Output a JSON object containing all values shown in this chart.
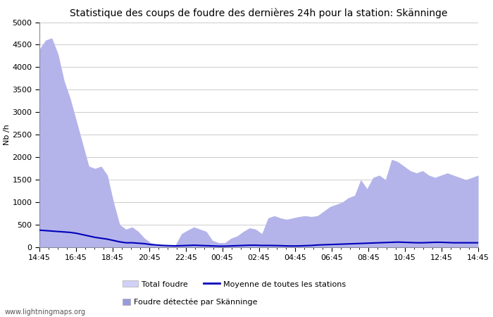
{
  "title": "Statistique des coups de foudre des dernières 24h pour la station: Skänninge",
  "ylabel": "Nb /h",
  "ylim": [
    0,
    5000
  ],
  "yticks": [
    0,
    500,
    1000,
    1500,
    2000,
    2500,
    3000,
    3500,
    4000,
    4500,
    5000
  ],
  "xtick_labels": [
    "14:45",
    "16:45",
    "18:45",
    "20:45",
    "22:45",
    "00:45",
    "02:45",
    "04:45",
    "06:45",
    "08:45",
    "10:45",
    "12:45",
    "14:45"
  ],
  "watermark": "www.lightningmaps.org",
  "total_foudre_color": "#d0d0f8",
  "detected_color": "#9999dd",
  "moyenne_color": "#0000bb",
  "background_color": "#ffffff",
  "grid_color": "#cccccc",
  "title_fontsize": 10,
  "axis_fontsize": 8,
  "tick_fontsize": 8,
  "legend_fontsize": 8,
  "total_foudre": [
    4400,
    4600,
    4650,
    4300,
    3700,
    3300,
    2800,
    2300,
    1800,
    1750,
    1800,
    1600,
    1000,
    500,
    400,
    450,
    350,
    200,
    100,
    60,
    50,
    40,
    50,
    300,
    380,
    450,
    400,
    350,
    150,
    100,
    100,
    200,
    250,
    350,
    430,
    400,
    300,
    650,
    700,
    650,
    620,
    650,
    680,
    700,
    680,
    700,
    800,
    900,
    950,
    1000,
    1100,
    1150,
    1500,
    1300,
    1550,
    1600,
    1500,
    1950,
    1900,
    1800,
    1700,
    1650,
    1700,
    1600,
    1550,
    1600,
    1650,
    1600,
    1550,
    1500,
    1550,
    1600
  ],
  "detected_foudre": [
    4400,
    4600,
    4650,
    4300,
    3700,
    3300,
    2800,
    2300,
    1800,
    1750,
    1800,
    1600,
    1000,
    500,
    400,
    450,
    350,
    200,
    100,
    60,
    50,
    40,
    50,
    300,
    380,
    450,
    400,
    350,
    150,
    100,
    100,
    200,
    250,
    350,
    430,
    400,
    300,
    650,
    700,
    650,
    620,
    650,
    680,
    700,
    680,
    700,
    800,
    900,
    950,
    1000,
    1100,
    1150,
    1500,
    1300,
    1550,
    1600,
    1500,
    1950,
    1900,
    1800,
    1700,
    1650,
    1700,
    1600,
    1550,
    1600,
    1650,
    1600,
    1550,
    1500,
    1550,
    1600
  ],
  "moyenne": [
    380,
    370,
    360,
    350,
    340,
    330,
    310,
    280,
    250,
    220,
    200,
    180,
    150,
    120,
    100,
    100,
    90,
    80,
    60,
    50,
    40,
    35,
    30,
    35,
    40,
    45,
    40,
    35,
    30,
    25,
    25,
    30,
    35,
    40,
    45,
    45,
    40,
    40,
    38,
    35,
    30,
    28,
    30,
    35,
    40,
    50,
    55,
    60,
    65,
    70,
    75,
    80,
    85,
    90,
    95,
    100,
    105,
    110,
    115,
    110,
    105,
    100,
    100,
    105,
    110,
    110,
    105,
    100,
    100,
    100,
    100,
    100
  ]
}
